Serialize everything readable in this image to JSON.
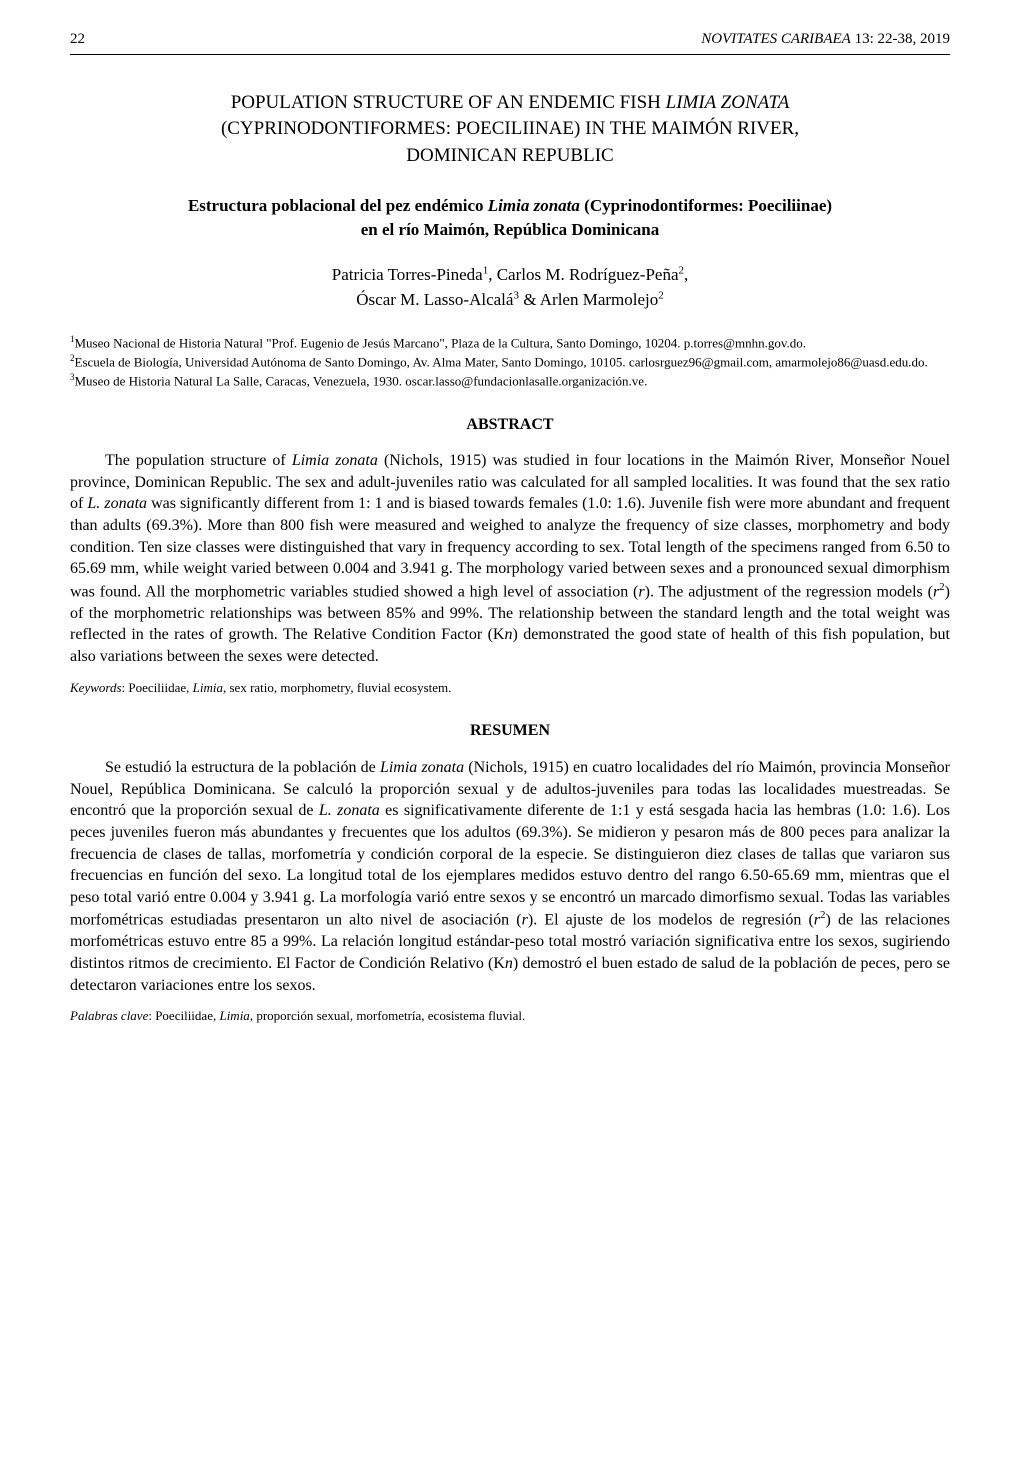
{
  "header": {
    "page_number": "22",
    "journal": "NOVITATES CARIBAEA",
    "volume": " 13: 22-38, 2019"
  },
  "title_english": {
    "line1": "POPULATION STRUCTURE OF AN ENDEMIC FISH ",
    "species": "LIMIA ZONATA",
    "line2": "(CYPRINODONTIFORMES: POECILIINAE) IN THE MAIMÓN RIVER,",
    "line3": "DOMINICAN REPUBLIC"
  },
  "title_spanish": {
    "line1": "Estructura poblacional del pez endémico ",
    "species": "Limia zonata",
    "line1_end": " (Cyprinodontiformes: Poeciliinae)",
    "line2": "en el río Maimón, República Dominicana"
  },
  "authors": {
    "a1_name": "Patricia Torres-Pineda",
    "a1_sup": "1",
    "a2_name": "Carlos M. Rodríguez-Peña",
    "a2_sup": "2",
    "a3_name": "Óscar M. Lasso-Alcalá",
    "a3_sup": "3",
    "a4_name": "Arlen Marmolejo",
    "a4_sup": "2"
  },
  "affiliations": {
    "aff1_sup": "1",
    "aff1": "Museo Nacional de Historia Natural \"Prof. Eugenio de Jesús Marcano\", Plaza de la Cultura, Santo Domingo, 10204. p.torres@mnhn.gov.do.",
    "aff2_sup": "2",
    "aff2": "Escuela de Biología, Universidad Autónoma de Santo Domingo, Av. Alma Mater, Santo Domingo, 10105. carlosrguez96@gmail.com, amarmolejo86@uasd.edu.do.",
    "aff3_sup": "3",
    "aff3": "Museo de Historia Natural La Salle, Caracas, Venezuela, 1930. oscar.lasso@fundacionlasalle.organización.ve."
  },
  "abstract": {
    "heading": "ABSTRACT",
    "text_p1": "The population structure of ",
    "species1": "Limia zonata",
    "text_p2": " (Nichols, 1915) was studied in four locations in the Maimón River, Monseñor Nouel province, Dominican Republic. The sex and adult-juveniles ratio was calculated for all sampled localities. It was found that the sex ratio of ",
    "species2": "L. zonata",
    "text_p3": " was significantly different from 1: 1 and is biased towards females (1.0: 1.6). Juvenile fish were more abundant and frequent than adults (69.3%). More than 800 fish were measured and weighed to analyze the frequency of size classes, morphometry and body condition. Ten size classes were distinguished that vary in frequency according to sex. Total length of the specimens ranged from 6.50 to 65.69 mm, while weight varied between 0.004 and 3.941 g. The morphology varied between sexes and a pronounced sexual dimorphism was found. All the morphometric variables studied showed a high level of association (",
    "r1": "r",
    "text_p4": "). The adjustment of the regression models (",
    "r2": "r",
    "sup2": "2",
    "text_p5": ") of the morphometric relationships was between 85% and 99%. The relationship between the standard length and the total weight was reflected in the rates of growth. The Relative Condition Factor (K",
    "n1": "n",
    "text_p6": ") demonstrated the good state of health of this fish population, but also variations between the sexes were detected."
  },
  "keywords_en": {
    "label": "Keywords",
    "text": ": Poeciliidae, ",
    "genus": "Limia",
    "text2": ", sex ratio, morphometry, fluvial ecosystem."
  },
  "resumen": {
    "heading": "RESUMEN",
    "text_p1": "Se estudió la estructura de la población de ",
    "species1": "Limia zonata",
    "text_p2": " (Nichols, 1915) en cuatro localidades del río Maimón, provincia Monseñor Nouel, República Dominicana. Se calculó la proporción sexual y de adultos-juveniles para todas las localidades muestreadas. Se encontró que la proporción sexual de ",
    "species2": "L. zonata",
    "text_p3": " es significativamente diferente de 1:1 y está sesgada hacia las hembras (1.0: 1.6). Los peces juveniles fueron más abundantes y frecuentes que los adultos (69.3%). Se midieron y pesaron más de 800 peces para analizar la frecuencia de clases de tallas, morfometría y condición corporal de la especie. Se distinguieron diez clases de tallas que variaron sus frecuencias en función del sexo. La longitud total de los ejemplares medidos estuvo dentro del rango 6.50-65.69 mm, mientras que el peso total varió entre 0.004 y 3.941 g. La morfología varió entre sexos y se encontró un marcado dimorfismo sexual. Todas las variables morfométricas estudiadas presentaron un alto nivel de asociación (",
    "r1": "r",
    "text_p4": "). El ajuste de los modelos de regresión (",
    "r2": "r",
    "sup2": "2",
    "text_p5": ") de las relaciones morfométricas estuvo entre 85 a 99%. La relación longitud estándar-peso total mostró variación significativa entre los sexos, sugiriendo distintos ritmos de crecimiento. El Factor de Condición Relativo (K",
    "n1": "n",
    "text_p6": ") demostró el buen estado de salud de la población de peces, pero se detectaron variaciones entre los sexos."
  },
  "keywords_es": {
    "label": "Palabras clave",
    "text": ": Poeciliidae, ",
    "genus": "Limia",
    "text2": ", proporción sexual, morfometría, ecosistema fluvial."
  }
}
